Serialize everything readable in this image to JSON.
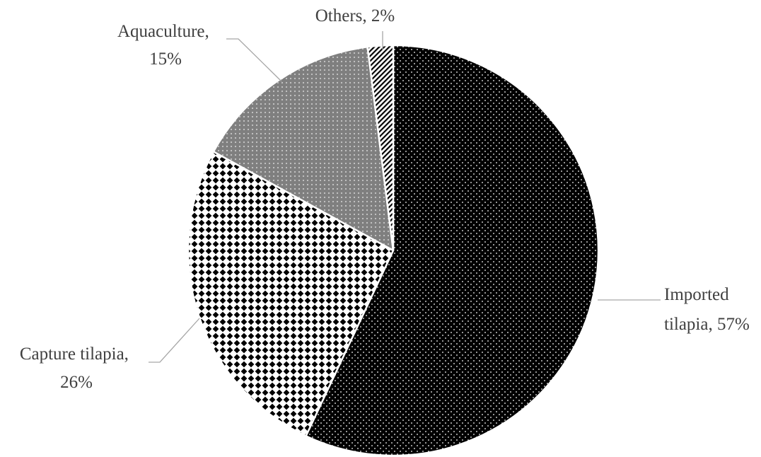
{
  "chart_data": {
    "type": "pie",
    "title": "",
    "slices": [
      {
        "label": "Imported tilapia",
        "value": 57,
        "value_label": "57%",
        "label_lines": [
          "Imported",
          "tilapia,  57%"
        ],
        "fill": "dots-dark"
      },
      {
        "label": "Capture tilapia",
        "value": 26,
        "value_label": "26%",
        "label_lines": [
          "Capture tilapia,",
          "26%"
        ],
        "fill": "checker"
      },
      {
        "label": "Aquaculture",
        "value": 15,
        "value_label": "15%",
        "label_lines": [
          "Aquaculture,",
          "15%"
        ],
        "fill": "dots-gray"
      },
      {
        "label": "Others",
        "value": 2,
        "value_label": "2%",
        "label_lines": [
          "Others, 2%"
        ],
        "fill": "diagonal"
      }
    ],
    "start_angle": "12 o'clock, clockwise",
    "legend": "none",
    "data_labels": "outside with leader lines",
    "colors": {
      "dark": "#000000",
      "gray": "#7f7f7f",
      "light": "#ffffff",
      "text": "#404040",
      "leader": "#a6a6a6"
    }
  }
}
